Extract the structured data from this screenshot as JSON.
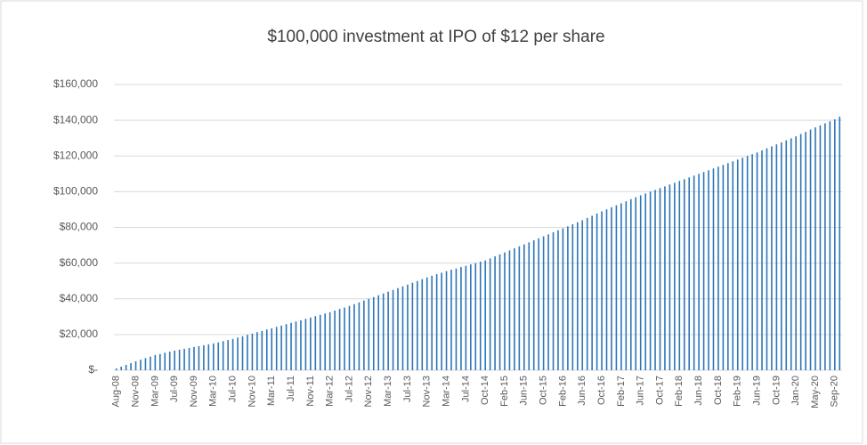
{
  "chart_data": {
    "type": "bar",
    "title": "$100,000 investment at IPO of $12 per share",
    "categories": [
      "Aug-08",
      null,
      null,
      null,
      "Nov-08",
      null,
      null,
      null,
      "Mar-09",
      null,
      null,
      null,
      "Jul-09",
      null,
      null,
      null,
      "Nov-09",
      null,
      null,
      null,
      "Mar-10",
      null,
      null,
      null,
      "Jul-10",
      null,
      null,
      null,
      "Nov-10",
      null,
      null,
      null,
      "Mar-11",
      null,
      null,
      null,
      "Jul-11",
      null,
      null,
      null,
      "Nov-11",
      null,
      null,
      null,
      "Mar-12",
      null,
      null,
      null,
      "Jul-12",
      null,
      null,
      null,
      "Nov-12",
      null,
      null,
      null,
      "Mar-13",
      null,
      null,
      null,
      "Jul-13",
      null,
      null,
      null,
      "Nov-13",
      null,
      null,
      null,
      "Mar-14",
      null,
      null,
      null,
      "Jul-14",
      null,
      null,
      null,
      "Oct-14",
      null,
      null,
      null,
      "Feb-15",
      null,
      null,
      null,
      "Jun-15",
      null,
      null,
      null,
      "Oct-15",
      null,
      null,
      null,
      "Feb-16",
      null,
      null,
      null,
      "Jun-16",
      null,
      null,
      null,
      "Oct-16",
      null,
      null,
      null,
      "Feb-17",
      null,
      null,
      null,
      "Jun-17",
      null,
      null,
      null,
      "Oct-17",
      null,
      null,
      null,
      "Feb-18",
      null,
      null,
      null,
      "Jun-18",
      null,
      null,
      null,
      "Oct-18",
      null,
      null,
      null,
      "Feb-19",
      null,
      null,
      null,
      "Jun-19",
      null,
      null,
      null,
      "Oct-19",
      null,
      null,
      null,
      "Jan-20",
      null,
      null,
      null,
      "May-20",
      null,
      null,
      null,
      "Sep-20",
      null
    ],
    "values": [
      1000,
      2000,
      3000,
      4000,
      5000,
      5900,
      6800,
      7600,
      8500,
      9100,
      9800,
      10400,
      11000,
      11500,
      12000,
      12500,
      13000,
      13500,
      14000,
      14500,
      15000,
      15600,
      16300,
      16900,
      17500,
      18300,
      19000,
      19800,
      20500,
      21300,
      22000,
      22800,
      23500,
      24300,
      25000,
      25800,
      26500,
      27300,
      28000,
      28800,
      29500,
      30300,
      31000,
      31800,
      32500,
      33400,
      34300,
      35100,
      36000,
      37000,
      38000,
      39000,
      40000,
      41000,
      42000,
      43000,
      44000,
      45000,
      46000,
      47000,
      48000,
      49000,
      50000,
      51000,
      52000,
      52900,
      53800,
      54600,
      55500,
      56300,
      57000,
      57800,
      58500,
      59300,
      60000,
      60800,
      61500,
      62600,
      63800,
      64900,
      66000,
      67100,
      68300,
      69400,
      70500,
      71600,
      72800,
      73900,
      75000,
      76100,
      77300,
      78400,
      79500,
      80600,
      81800,
      82900,
      84000,
      85300,
      86500,
      87800,
      89000,
      90100,
      91300,
      92400,
      93500,
      94600,
      95800,
      96900,
      98000,
      99000,
      100000,
      101000,
      102000,
      103000,
      104000,
      105000,
      106000,
      107000,
      108000,
      109000,
      110000,
      111000,
      112000,
      113000,
      114000,
      115000,
      116000,
      117000,
      118000,
      119000,
      120000,
      121000,
      122000,
      123100,
      124300,
      125400,
      126500,
      127600,
      128800,
      129900,
      131000,
      132300,
      133500,
      134800,
      136000,
      137100,
      138300,
      139400,
      140500,
      142000
    ],
    "color": "#2e75b6",
    "ylim": [
      0,
      160000
    ],
    "yticks": [
      {
        "value": 0,
        "label": "$-"
      },
      {
        "value": 20000,
        "label": "$20,000"
      },
      {
        "value": 40000,
        "label": "$40,000"
      },
      {
        "value": 60000,
        "label": "$60,000"
      },
      {
        "value": 80000,
        "label": "$80,000"
      },
      {
        "value": 100000,
        "label": "$100,000"
      },
      {
        "value": 120000,
        "label": "$120,000"
      },
      {
        "value": 140000,
        "label": "$140,000"
      },
      {
        "value": 160000,
        "label": "$160,000"
      }
    ],
    "grid": true
  }
}
